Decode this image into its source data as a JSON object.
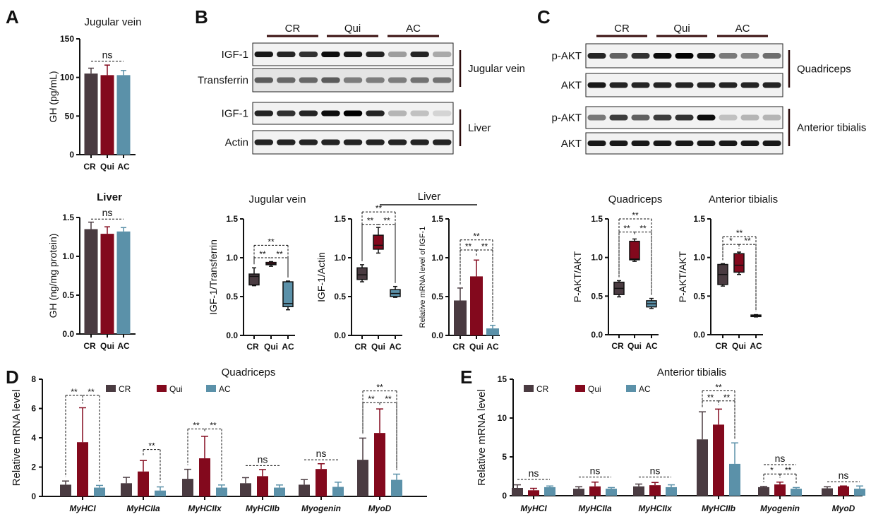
{
  "panel_labels": [
    "A",
    "B",
    "C",
    "D",
    "E"
  ],
  "colors": {
    "CR": "#4a3b41",
    "Qui": "#83091d",
    "AC": "#5b91a9"
  },
  "blots": [
    {
      "header": [
        "CR",
        "Qui",
        "AC"
      ],
      "rows": [
        {
          "label": "IGF-1",
          "intensity": [
            0.9,
            0.85,
            0.8,
            0.95,
            0.9,
            0.85,
            0.35,
            0.85,
            0.3
          ]
        },
        {
          "label": "Transferrin",
          "intensity": [
            0.6,
            0.55,
            0.55,
            0.6,
            0.45,
            0.45,
            0.45,
            0.5,
            0.5
          ]
        },
        {
          "label": "IGF-1",
          "intensity": [
            0.85,
            0.8,
            0.85,
            0.95,
            1.0,
            0.85,
            0.25,
            0.2,
            0.12
          ]
        },
        {
          "label": "Actin",
          "intensity": [
            0.85,
            0.85,
            0.85,
            0.85,
            0.85,
            0.85,
            0.85,
            0.85,
            0.85
          ]
        }
      ],
      "brackets": [
        "Jugular vein",
        "Liver"
      ]
    },
    {
      "header": [
        "CR",
        "Qui",
        "AC"
      ],
      "rows": [
        {
          "label": "p-AKT",
          "intensity": [
            0.85,
            0.6,
            0.8,
            0.95,
            1.0,
            0.9,
            0.5,
            0.45,
            0.55
          ]
        },
        {
          "label": "AKT",
          "intensity": [
            0.9,
            0.85,
            0.85,
            0.85,
            0.85,
            0.85,
            0.85,
            0.85,
            0.85
          ]
        },
        {
          "label": "p-AKT",
          "intensity": [
            0.5,
            0.75,
            0.6,
            0.75,
            0.8,
            0.95,
            0.2,
            0.25,
            0.25
          ]
        },
        {
          "label": "AKT",
          "intensity": [
            0.9,
            0.9,
            0.9,
            0.9,
            0.9,
            0.9,
            0.9,
            0.9,
            0.9
          ]
        }
      ],
      "brackets": [
        "Quadriceps",
        "Anterior tibialis"
      ]
    }
  ],
  "liver_group_label": "Liver",
  "chart_data": [
    {
      "id": "A1",
      "type": "bar",
      "title": "Jugular vein",
      "ylabel": "GH (pg/mL)",
      "categories": [
        "CR",
        "Qui",
        "AC"
      ],
      "values": [
        105,
        103,
        103
      ],
      "errors": [
        112,
        116,
        109
      ],
      "ylim": [
        0,
        150
      ],
      "yticks": [
        0,
        50,
        100,
        150
      ],
      "ytick_labels": [
        "0",
        "50",
        "100",
        "150"
      ],
      "sig": [
        {
          "a": 0,
          "b": 2,
          "label": "ns",
          "at": 121
        }
      ]
    },
    {
      "id": "A2",
      "type": "bar",
      "title": "Liver",
      "ylabel": "GH (ng/mg protein)",
      "categories": [
        "CR",
        "Qui",
        "AC"
      ],
      "values": [
        1.35,
        1.29,
        1.32
      ],
      "errors": [
        1.44,
        1.38,
        1.37
      ],
      "ylim": [
        0,
        1.5
      ],
      "yticks": [
        0,
        0.5,
        1,
        1.5
      ],
      "ytick_labels": [
        "0.0",
        "0.5",
        "1.0",
        "1.5"
      ],
      "sig": [
        {
          "a": 0,
          "b": 2,
          "label": "ns",
          "at": 1.48
        }
      ]
    },
    {
      "id": "B1",
      "type": "box",
      "title": "Jugular vein",
      "ylabel": "IGF-1/Transferrin",
      "categories": [
        "CR",
        "Qui",
        "AC"
      ],
      "values": [
        {
          "min": 0.64,
          "q1": 0.65,
          "median": 0.76,
          "q3": 0.79,
          "max": 0.87
        },
        {
          "min": 0.89,
          "q1": 0.91,
          "median": 0.92,
          "q3": 0.94,
          "max": 0.95
        },
        {
          "min": 0.33,
          "q1": 0.37,
          "median": 0.41,
          "q3": 0.69,
          "max": 0.7
        }
      ],
      "ylim": [
        0,
        1.5
      ],
      "yticks": [
        0,
        0.5,
        1,
        1.5
      ],
      "ytick_labels": [
        "0.0",
        "0.5",
        "1.0",
        "1.5"
      ],
      "sig": [
        {
          "a": 0,
          "b": 1,
          "label": "**",
          "at": 1.0
        },
        {
          "a": 1,
          "b": 2,
          "label": "**",
          "at": 1.0
        },
        {
          "a": 0,
          "b": 2,
          "label": "**",
          "at": 1.16
        }
      ]
    },
    {
      "id": "B2",
      "type": "box",
      "title": "",
      "ylabel": "IGF-1/Actin",
      "categories": [
        "CR",
        "Qui",
        "AC"
      ],
      "values": [
        {
          "min": 0.69,
          "q1": 0.72,
          "median": 0.78,
          "q3": 0.87,
          "max": 0.91
        },
        {
          "min": 1.06,
          "q1": 1.11,
          "median": 1.16,
          "q3": 1.29,
          "max": 1.39
        },
        {
          "min": 0.49,
          "q1": 0.5,
          "median": 0.54,
          "q3": 0.59,
          "max": 0.63
        }
      ],
      "ylim": [
        0,
        1.5
      ],
      "yticks": [
        0,
        0.5,
        1,
        1.5
      ],
      "ytick_labels": [
        "0.0",
        "0.5",
        "1.0",
        "1.5"
      ],
      "sig": [
        {
          "a": 0,
          "b": 1,
          "label": "**",
          "at": 1.43
        },
        {
          "a": 1,
          "b": 2,
          "label": "**",
          "at": 1.43
        },
        {
          "a": 0,
          "b": 2,
          "label": "**",
          "at": 1.59
        }
      ]
    },
    {
      "id": "B3",
      "type": "bar",
      "title": "",
      "ylabel": "Relative mRNA level of IGF-1",
      "categories": [
        "CR",
        "Qui",
        "AC"
      ],
      "values": [
        0.45,
        0.76,
        0.09
      ],
      "errors": [
        0.61,
        0.97,
        0.13
      ],
      "ylim": [
        0,
        1.5
      ],
      "yticks": [
        0,
        0.5,
        1,
        1.5
      ],
      "ytick_labels": [
        "0.0",
        "0.5",
        "1.0",
        "1.5"
      ],
      "sig": [
        {
          "a": 0,
          "b": 1,
          "label": "**",
          "at": 1.1
        },
        {
          "a": 1,
          "b": 2,
          "label": "**",
          "at": 1.1
        },
        {
          "a": 0,
          "b": 2,
          "label": "**",
          "at": 1.23
        }
      ]
    },
    {
      "id": "C1",
      "type": "box",
      "title": "Quadriceps",
      "ylabel": "P-AKT/AKT",
      "categories": [
        "CR",
        "Qui",
        "AC"
      ],
      "values": [
        {
          "min": 0.49,
          "q1": 0.52,
          "median": 0.6,
          "q3": 0.68,
          "max": 0.7
        },
        {
          "min": 0.95,
          "q1": 0.97,
          "median": 0.98,
          "q3": 1.21,
          "max": 1.24
        },
        {
          "min": 0.34,
          "q1": 0.36,
          "median": 0.4,
          "q3": 0.44,
          "max": 0.47
        }
      ],
      "ylim": [
        0,
        1.5
      ],
      "yticks": [
        0,
        0.5,
        1,
        1.5
      ],
      "ytick_labels": [
        "0.0",
        "0.5",
        "1.0",
        "1.5"
      ],
      "sig": [
        {
          "a": 0,
          "b": 1,
          "label": "**",
          "at": 1.33
        },
        {
          "a": 1,
          "b": 2,
          "label": "**",
          "at": 1.33
        },
        {
          "a": 0,
          "b": 2,
          "label": "**",
          "at": 1.5
        }
      ]
    },
    {
      "id": "C2",
      "type": "box",
      "title": "Anterior tibialis",
      "ylabel": "P-AKT/AKT",
      "categories": [
        "CR",
        "Qui",
        "AC"
      ],
      "values": [
        {
          "min": 0.63,
          "q1": 0.65,
          "median": 0.78,
          "q3": 0.91,
          "max": 0.92
        },
        {
          "min": 0.78,
          "q1": 0.81,
          "median": 0.9,
          "q3": 1.05,
          "max": 1.07
        },
        {
          "min": 0.23,
          "q1": 0.235,
          "median": 0.245,
          "q3": 0.255,
          "max": 0.26
        }
      ],
      "ylim": [
        0,
        1.5
      ],
      "yticks": [
        0,
        0.5,
        1,
        1.5
      ],
      "ytick_labels": [
        "0.0",
        "0.5",
        "1.0",
        "1.5"
      ],
      "sig": [
        {
          "a": 0,
          "b": 1,
          "label": "*",
          "at": 1.17
        },
        {
          "a": 1,
          "b": 2,
          "label": "**",
          "at": 1.17
        },
        {
          "a": 0,
          "b": 2,
          "label": "**",
          "at": 1.27
        }
      ]
    },
    {
      "id": "D",
      "type": "bar",
      "title": "Quadriceps",
      "ylabel": "Relative mRNA level",
      "categories": [
        "MyHCI",
        "MyHCIIa",
        "MyHCIIx",
        "MyHCIIb",
        "Myogenin",
        "MyoD"
      ],
      "series": [
        {
          "name": "CR",
          "values": [
            0.8,
            0.9,
            1.2,
            0.9,
            0.8,
            2.5
          ],
          "errors": [
            1.05,
            1.3,
            1.85,
            1.28,
            1.15,
            3.98
          ]
        },
        {
          "name": "Qui",
          "values": [
            3.7,
            1.7,
            2.6,
            1.38,
            1.87,
            4.33
          ],
          "errors": [
            6.05,
            2.45,
            4.1,
            1.83,
            2.23,
            5.97
          ]
        },
        {
          "name": "AC",
          "values": [
            0.6,
            0.4,
            0.6,
            0.6,
            0.65,
            1.13
          ],
          "errors": [
            0.75,
            0.65,
            0.78,
            0.78,
            0.97,
            1.52
          ]
        }
      ],
      "ylim": [
        0,
        8
      ],
      "yticks": [
        0,
        2,
        4,
        6,
        8
      ],
      "ytick_labels": [
        "0",
        "2",
        "4",
        "6",
        "8"
      ],
      "sig": [
        {
          "group": 0,
          "a": 0,
          "b": 1,
          "label": "**",
          "at": 6.9
        },
        {
          "group": 0,
          "a": 1,
          "b": 2,
          "label": "**",
          "at": 6.9
        },
        {
          "group": 1,
          "a": 1,
          "b": 2,
          "label": "**",
          "at": 3.2
        },
        {
          "group": 2,
          "a": 0,
          "b": 1,
          "label": "**",
          "at": 4.6
        },
        {
          "group": 2,
          "a": 1,
          "b": 2,
          "label": "**",
          "at": 4.6
        },
        {
          "group": 3,
          "a": 0,
          "b": 2,
          "label": "ns",
          "at": 2.1
        },
        {
          "group": 4,
          "a": 0,
          "b": 2,
          "label": "ns",
          "at": 2.5
        },
        {
          "group": 5,
          "a": 0,
          "b": 1,
          "label": "**",
          "at": 6.4
        },
        {
          "group": 5,
          "a": 1,
          "b": 2,
          "label": "**",
          "at": 6.4
        },
        {
          "group": 5,
          "a": 0,
          "b": 2,
          "label": "**",
          "at": 7.2
        }
      ]
    },
    {
      "id": "E",
      "type": "bar",
      "title": "Anterior tibialis",
      "ylabel": "Relative mRNA level",
      "categories": [
        "MyHCI",
        "MyHCIIa",
        "MyHCIIx",
        "MyHCIIb",
        "Myogenin",
        "MyoD"
      ],
      "series": [
        {
          "name": "CR",
          "values": [
            1.0,
            0.9,
            1.2,
            7.25,
            1.1,
            0.95
          ],
          "errors": [
            1.4,
            1.15,
            1.5,
            10.8,
            1.2,
            1.15
          ]
        },
        {
          "name": "Qui",
          "values": [
            0.7,
            1.2,
            1.35,
            9.15,
            1.45,
            1.2
          ],
          "errors": [
            0.95,
            1.75,
            1.7,
            11.15,
            1.75,
            1.25
          ]
        },
        {
          "name": "AC",
          "values": [
            1.1,
            0.9,
            1.1,
            4.1,
            0.9,
            0.9
          ],
          "errors": [
            1.25,
            1.05,
            1.4,
            6.8,
            1.05,
            1.25
          ]
        }
      ],
      "ylim": [
        0,
        15
      ],
      "yticks": [
        0,
        5,
        10,
        15
      ],
      "ytick_labels": [
        "0",
        "5",
        "10",
        "15"
      ],
      "sig": [
        {
          "group": 0,
          "a": 0,
          "b": 2,
          "label": "ns",
          "at": 2.1
        },
        {
          "group": 1,
          "a": 0,
          "b": 2,
          "label": "ns",
          "at": 2.4
        },
        {
          "group": 2,
          "a": 0,
          "b": 2,
          "label": "ns",
          "at": 2.4
        },
        {
          "group": 3,
          "a": 0,
          "b": 1,
          "label": "**",
          "at": 12.2
        },
        {
          "group": 3,
          "a": 1,
          "b": 2,
          "label": "**",
          "at": 12.2
        },
        {
          "group": 3,
          "a": 0,
          "b": 2,
          "label": "**",
          "at": 13.5
        },
        {
          "group": 4,
          "a": 0,
          "b": 1,
          "label": "*",
          "at": 2.8
        },
        {
          "group": 4,
          "a": 1,
          "b": 2,
          "label": "**",
          "at": 2.8
        },
        {
          "group": 4,
          "a": 0,
          "b": 2,
          "label": "ns",
          "at": 4.0
        },
        {
          "group": 5,
          "a": 0,
          "b": 2,
          "label": "ns",
          "at": 1.8
        }
      ]
    }
  ]
}
